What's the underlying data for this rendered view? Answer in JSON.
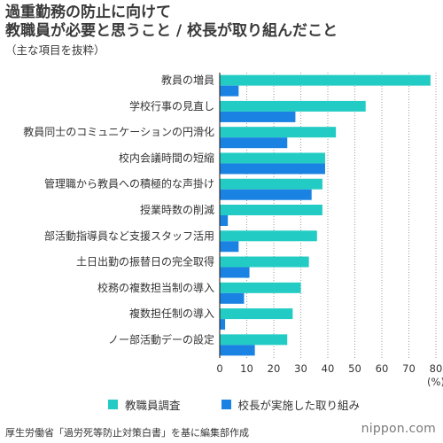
{
  "header": {
    "title_line1": "過重勤務の防止に向けて",
    "title_line2": "教職員が必要と思うこと / 校長が取り組んだこと",
    "subtitle": "（主な項目を抜粋）"
  },
  "chart_data": {
    "type": "bar",
    "orientation": "horizontal",
    "title": "過重勤務の防止に向けて 教職員が必要と思うこと / 校長が取り組んだこと",
    "subtitle": "（主な項目を抜粋）",
    "xlabel": "(%)",
    "ylabel": "",
    "xlim": [
      0,
      80
    ],
    "xticks": [
      "0",
      "10",
      "20",
      "30",
      "40",
      "50",
      "60",
      "70",
      "80"
    ],
    "x_unit": "(%)",
    "grid": true,
    "legend_position": "bottom",
    "categories": [
      "教員の増員",
      "学校行事の見直し",
      "教員同士のコミュニケーションの円滑化",
      "校内会議時間の短縮",
      "管理職から教員への積極的な声掛け",
      "授業時数の削減",
      "部活動指導員など支援スタッフ活用",
      "土日出勤の振替日の完全取得",
      "校務の複数担当制の導入",
      "複数担任制の導入",
      "ノー部活動デーの設定"
    ],
    "series": [
      {
        "name": "教職員調査",
        "color": "#22ccc4",
        "values": [
          78,
          54,
          43,
          39,
          38,
          38,
          36,
          33,
          30,
          27,
          25
        ]
      },
      {
        "name": "校長が実施した取り組み",
        "color": "#1a82e2",
        "values": [
          7,
          28,
          25,
          39,
          34,
          3,
          7,
          11,
          9,
          2,
          13
        ]
      }
    ]
  },
  "legend": {
    "series1_label": "教職員調査",
    "series2_label": "校長が実施した取り組み"
  },
  "footer": {
    "source": "厚生労働省「過労死等防止対策白書」を基に編集部作成",
    "brand": "nippon.com"
  }
}
